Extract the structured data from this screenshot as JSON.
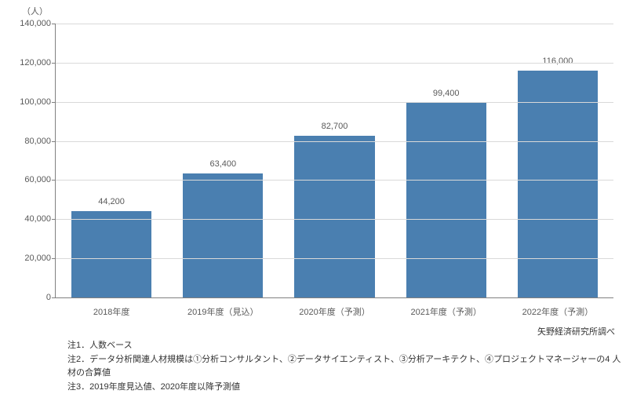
{
  "chart": {
    "type": "bar",
    "y_unit_label": "（人）",
    "categories": [
      "2018年度",
      "2019年度（見込）",
      "2020年度（予測）",
      "2021年度（予測）",
      "2022年度（予測）"
    ],
    "values": [
      44200,
      63400,
      82700,
      99400,
      116000
    ],
    "value_labels": [
      "44,200",
      "63,400",
      "82,700",
      "99,400",
      "116,000"
    ],
    "bar_color": "#4a7fb0",
    "ylim_max": 140000,
    "yticks": [
      0,
      20000,
      40000,
      60000,
      80000,
      100000,
      120000,
      140000
    ],
    "ytick_labels": [
      "0",
      "20,000",
      "40,000",
      "60,000",
      "80,000",
      "100,000",
      "120,000",
      "140,000"
    ],
    "grid_color": "#d9d9d9",
    "axis_color": "#808080",
    "text_color": "#595959",
    "background_color": "#ffffff",
    "label_fontsize": 11,
    "bar_width_pct": 72
  },
  "source_text": "矢野経済研究所調べ",
  "notes": [
    "注1．人数ベース",
    "注2．データ分析関連人材規模は①分析コンサルタント、②データサイエンティスト、③分析アーキテクト、④プロジェクトマネージャーの4 人材の合算値",
    "注3．2019年度見込値、2020年度以降予測値"
  ]
}
